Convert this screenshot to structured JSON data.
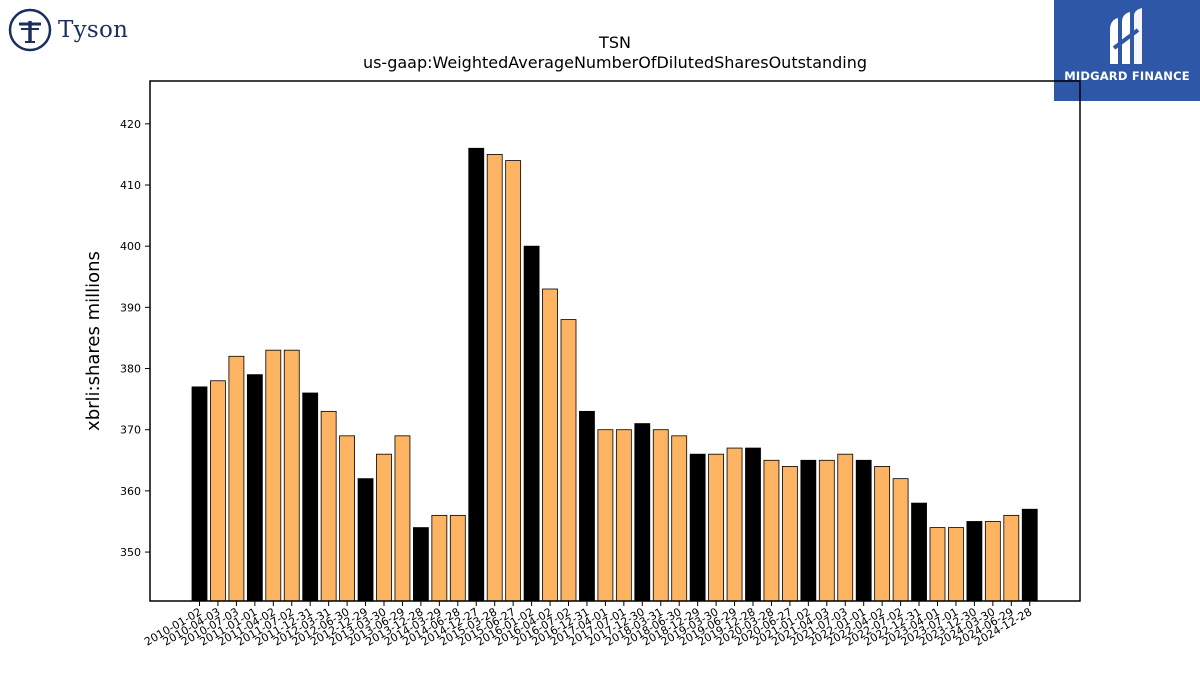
{
  "logos": {
    "left_text": "Tyson",
    "right_text": "MIDGARD FINANCE"
  },
  "chart_data": {
    "type": "bar",
    "title": "TSN",
    "subtitle": "us-gaap:WeightedAverageNumberOfDilutedSharesOutstanding",
    "xlabel": "",
    "ylabel": "xbrli:shares millions",
    "ylim": [
      342,
      427
    ],
    "yticks": [
      350,
      360,
      370,
      380,
      390,
      400,
      410,
      420
    ],
    "grid": false,
    "colors": {
      "fiscal_year": "#000000",
      "quarter": "#fdb462"
    },
    "categories": [
      "2010-01-02",
      "2010-04-03",
      "2010-07-03",
      "2011-01-01",
      "2011-04-02",
      "2011-07-02",
      "2011-12-31",
      "2012-03-31",
      "2012-06-30",
      "2012-12-29",
      "2013-03-30",
      "2013-06-29",
      "2013-12-28",
      "2014-03-29",
      "2014-06-28",
      "2014-12-27",
      "2015-03-28",
      "2015-06-27",
      "2016-01-02",
      "2016-04-02",
      "2016-07-02",
      "2016-12-31",
      "2017-04-01",
      "2017-07-01",
      "2017-12-30",
      "2018-03-31",
      "2018-06-30",
      "2018-12-29",
      "2019-03-30",
      "2019-06-29",
      "2019-12-28",
      "2020-03-28",
      "2020-06-27",
      "2021-01-02",
      "2021-04-03",
      "2021-07-03",
      "2022-01-01",
      "2022-04-02",
      "2022-07-02",
      "2022-12-31",
      "2023-04-01",
      "2023-07-01",
      "2023-12-30",
      "2024-03-30",
      "2024-06-29",
      "2024-12-28"
    ],
    "values": [
      377,
      378,
      382,
      379,
      383,
      383,
      376,
      373,
      369,
      362,
      366,
      369,
      354,
      356,
      356,
      416,
      415,
      414,
      400,
      393,
      388,
      373,
      370,
      370,
      371,
      370,
      369,
      366,
      366,
      367,
      367,
      365,
      364,
      365,
      365,
      366,
      365,
      364,
      362,
      358,
      354,
      354,
      355,
      355,
      356,
      357
    ],
    "fiscal_year_flags": [
      true,
      false,
      false,
      true,
      false,
      false,
      true,
      false,
      false,
      true,
      false,
      false,
      true,
      false,
      false,
      true,
      false,
      false,
      true,
      false,
      false,
      true,
      false,
      false,
      true,
      false,
      false,
      true,
      false,
      false,
      true,
      false,
      false,
      true,
      false,
      false,
      true,
      false,
      false,
      true,
      false,
      false,
      true,
      false,
      false,
      true
    ]
  }
}
